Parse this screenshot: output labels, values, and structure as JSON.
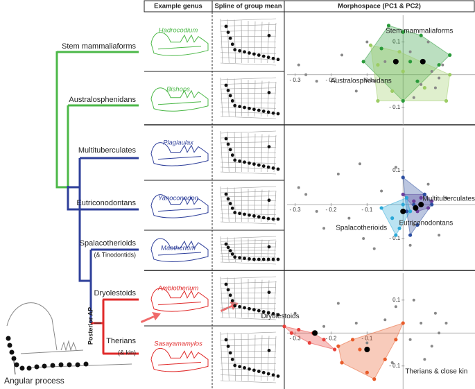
{
  "header": {
    "genus": "Example genus",
    "spline": "Spline of group mean",
    "morpho": "Morphospace (PC1 & PC2)"
  },
  "tree": {
    "taxa": [
      {
        "label": "Stem mammaliaforms"
      },
      {
        "label": "Australosphenidans"
      },
      {
        "label": "Multituberculates"
      },
      {
        "label": "Eutriconodontans"
      },
      {
        "label": "Spalacotherioids",
        "note": "(& Tinodontids)"
      },
      {
        "label": "Dryolestoids"
      },
      {
        "label": "Therians",
        "note": "(& kin)"
      }
    ],
    "node_label": "Posterior AP"
  },
  "genera": [
    "Hadrocodium",
    "Bishops",
    "Plagiaulax",
    "Yanoconodon",
    "Maotherium",
    "Amblotherium",
    "Sasayamamylos"
  ],
  "inset_label": "Angular process",
  "morphospace": [
    {
      "xlim": [
        -0.33,
        0.2
      ],
      "ylim": [
        -0.153,
        0.19
      ],
      "xticks": [
        {
          "value": -0.3,
          "label": "- 0.3"
        },
        {
          "value": -0.2,
          "label": "- 0.2"
        },
        {
          "value": -0.1,
          "label": "- 0.1"
        }
      ],
      "yticks": [
        0.1,
        {
          "value": -0.1,
          "label": "- 0.1"
        }
      ],
      "others": [
        [
          -0.29,
          0.03
        ],
        [
          -0.27,
          0.0
        ],
        [
          -0.24,
          -0.02
        ],
        [
          -0.17,
          0.06
        ],
        [
          -0.13,
          -0.05
        ],
        [
          -0.1,
          0.1
        ],
        [
          -0.08,
          -0.02
        ],
        [
          0.02,
          0.07
        ],
        [
          0.05,
          -0.03
        ],
        [
          0.08,
          0.01
        ],
        [
          0.09,
          -0.04
        ],
        [
          0.1,
          -0.01
        ],
        [
          0.07,
          0.1
        ],
        [
          -0.05,
          0.04
        ],
        [
          0.03,
          -0.07
        ],
        [
          0.11,
          0.03
        ]
      ],
      "groups": [
        {
          "name": "Stem mammaliaforms",
          "color": "#2a9a3a",
          "points": [
            [
              -0.04,
              0.15
            ],
            [
              0.0,
              0.13
            ],
            [
              0.05,
              0.12
            ],
            [
              0.13,
              0.06
            ],
            [
              0.1,
              0.03
            ],
            [
              0.04,
              -0.02
            ],
            [
              0.0,
              -0.08
            ],
            [
              -0.11,
              0.04
            ],
            [
              -0.06,
              0.08
            ],
            [
              0.02,
              0.04
            ]
          ],
          "mean": [
            0.055,
            0.04
          ]
        },
        {
          "name": "Australosphenidans",
          "color": "#9ccc65",
          "points": [
            [
              -0.09,
              0.09
            ],
            [
              -0.07,
              0.03
            ],
            [
              -0.07,
              -0.08
            ],
            [
              -0.03,
              -0.05
            ],
            [
              0.0,
              0.01
            ],
            [
              0.06,
              -0.04
            ],
            [
              0.12,
              -0.08
            ],
            [
              0.13,
              0.0
            ],
            [
              -0.01,
              0.07
            ]
          ],
          "mean": [
            -0.02,
            0.04
          ]
        }
      ]
    },
    {
      "xlim": [
        -0.33,
        0.2
      ],
      "ylim": [
        -0.194,
        0.235
      ],
      "xticks": [
        {
          "value": -0.3,
          "label": "- 0.3"
        },
        {
          "value": -0.2,
          "label": "- 0.2"
        },
        {
          "value": -0.1,
          "label": "- 0.1"
        }
      ],
      "yticks": [
        0.1,
        {
          "value": -0.1,
          "label": "- 0.1"
        }
      ],
      "others": [
        [
          -0.29,
          0.05
        ],
        [
          -0.27,
          0.03
        ],
        [
          -0.24,
          -0.02
        ],
        [
          -0.22,
          -0.07
        ],
        [
          -0.18,
          0.09
        ],
        [
          -0.15,
          -0.04
        ],
        [
          -0.11,
          -0.1
        ],
        [
          -0.08,
          -0.13
        ],
        [
          -0.06,
          0.04
        ],
        [
          -0.02,
          0.11
        ],
        [
          0.03,
          -0.06
        ],
        [
          0.07,
          0.06
        ],
        [
          0.1,
          -0.09
        ],
        [
          0.12,
          0.02
        ],
        [
          -0.12,
          0.12
        ],
        [
          0.02,
          -0.12
        ]
      ],
      "groups": [
        {
          "name": "Multituberculates",
          "color": "#6a3d9a",
          "points": [
            [
              0.0,
              0.03
            ],
            [
              0.03,
              0.01
            ],
            [
              0.05,
              0.02
            ],
            [
              0.07,
              -0.01
            ],
            [
              0.08,
              0.01
            ],
            [
              0.04,
              -0.02
            ],
            [
              0.06,
              0.03
            ]
          ],
          "mean": [
            0.05,
            0.0
          ]
        },
        {
          "name": "Eutriconodontans",
          "color": "#2c4ea0",
          "points": [
            [
              0.0,
              0.08
            ],
            [
              0.01,
              -0.02
            ],
            [
              0.04,
              -0.06
            ],
            [
              0.08,
              0.0
            ],
            [
              0.02,
              -0.09
            ],
            [
              0.06,
              0.03
            ],
            [
              0.03,
              0.0
            ]
          ],
          "mean": [
            0.035,
            -0.01
          ]
        },
        {
          "name": "Spalacotherioids",
          "color": "#29a8d8",
          "points": [
            [
              -0.06,
              -0.01
            ],
            [
              -0.03,
              -0.04
            ],
            [
              -0.01,
              -0.07
            ],
            [
              0.0,
              0.0
            ],
            [
              0.02,
              -0.02
            ],
            [
              -0.02,
              -0.09
            ],
            [
              0.01,
              0.02
            ]
          ],
          "mean": [
            0.0,
            -0.02
          ]
        }
      ]
    },
    {
      "xlim": [
        -0.33,
        0.2
      ],
      "ylim": [
        -0.17,
        0.19
      ],
      "xticks": [
        {
          "value": -0.3,
          "label": "- 0.3"
        },
        {
          "value": -0.2,
          "label": "- 0.2"
        },
        {
          "value": -0.1,
          "label": "- 0.1"
        }
      ],
      "yticks": [
        0.1,
        {
          "value": -0.1,
          "label": "- 0.1"
        }
      ],
      "others": [
        [
          -0.3,
          0.06
        ],
        [
          -0.22,
          0.02
        ],
        [
          -0.18,
          0.09
        ],
        [
          -0.13,
          0.03
        ],
        [
          -0.1,
          -0.03
        ],
        [
          -0.05,
          0.04
        ],
        [
          -0.02,
          0.08
        ],
        [
          0.02,
          -0.02
        ],
        [
          0.05,
          0.03
        ],
        [
          0.08,
          -0.04
        ],
        [
          0.1,
          0.0
        ],
        [
          0.12,
          0.03
        ],
        [
          0.03,
          0.1
        ],
        [
          0.06,
          -0.08
        ],
        [
          0.09,
          0.06
        ],
        [
          -0.03,
          -0.09
        ]
      ],
      "groups": [
        {
          "name": "Dryolestoids",
          "color": "#e8413c",
          "points": [
            [
              -0.33,
              0.02
            ],
            [
              -0.29,
              0.01
            ],
            [
              -0.25,
              0.0
            ],
            [
              -0.22,
              -0.02
            ],
            [
              -0.19,
              -0.05
            ],
            [
              -0.26,
              -0.03
            ],
            [
              -0.31,
              0.0
            ]
          ],
          "mean": [
            -0.245,
            0.0
          ]
        },
        {
          "name": "Therians & close kin",
          "color": "#e85c2a",
          "points": [
            [
              -0.18,
              -0.04
            ],
            [
              -0.17,
              -0.09
            ],
            [
              -0.12,
              -0.05
            ],
            [
              -0.1,
              -0.12
            ],
            [
              -0.08,
              -0.14
            ],
            [
              -0.02,
              -0.02
            ],
            [
              0.0,
              0.03
            ],
            [
              -0.05,
              -0.08
            ],
            [
              -0.14,
              -0.02
            ]
          ],
          "mean": [
            -0.1,
            -0.05
          ]
        }
      ]
    }
  ]
}
